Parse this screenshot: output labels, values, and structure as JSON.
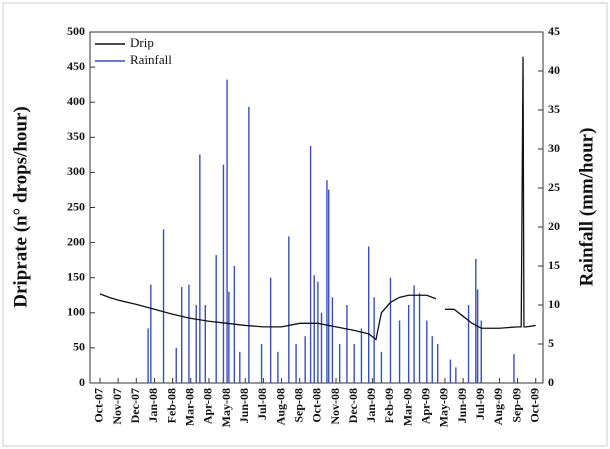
{
  "chart_data": {
    "type": "line",
    "y_label": "Driprate (n° drops/hour)",
    "y2_label": "Rainfall (mm/hour)",
    "xlim": [
      -0.55,
      24.4
    ],
    "xticks": [
      {
        "value": 0,
        "label": "Oct-07"
      },
      {
        "value": 1,
        "label": "Nov-07"
      },
      {
        "value": 2,
        "label": "Dec-07"
      },
      {
        "value": 3,
        "label": "Jan-08"
      },
      {
        "value": 4,
        "label": "Feb-08"
      },
      {
        "value": 5,
        "label": "Mar-08"
      },
      {
        "value": 6,
        "label": "Apr-08"
      },
      {
        "value": 7,
        "label": "May-08"
      },
      {
        "value": 8,
        "label": "Jun-08"
      },
      {
        "value": 9,
        "label": "Jul-08"
      },
      {
        "value": 10,
        "label": "Aug-08"
      },
      {
        "value": 11,
        "label": "Sep-08"
      },
      {
        "value": 12,
        "label": "Oct-08"
      },
      {
        "value": 13,
        "label": "Nov-08"
      },
      {
        "value": 14,
        "label": "Dec-08"
      },
      {
        "value": 15,
        "label": "Jan-09"
      },
      {
        "value": 16,
        "label": "Feb-09"
      },
      {
        "value": 17,
        "label": "Mar-09"
      },
      {
        "value": 18,
        "label": "Apr-09"
      },
      {
        "value": 19,
        "label": "May-09"
      },
      {
        "value": 20,
        "label": "Jun-09"
      },
      {
        "value": 21,
        "label": "Jul-09"
      },
      {
        "value": 22,
        "label": "Aug-09"
      },
      {
        "value": 23,
        "label": "Sep-09"
      },
      {
        "value": 24,
        "label": "Oct-09"
      }
    ],
    "ylim": [
      0,
      500
    ],
    "yticks": [
      0,
      50,
      100,
      150,
      200,
      250,
      300,
      350,
      400,
      450,
      500
    ],
    "y2lim": [
      0,
      45
    ],
    "y2ticks": [
      0,
      5,
      10,
      15,
      20,
      25,
      30,
      35,
      40,
      45
    ],
    "legend": "upper left",
    "series": [
      {
        "name": "Drip",
        "type": "line",
        "color": "#111111",
        "x": [
          0,
          0.5,
          1,
          2,
          3,
          4,
          5,
          6,
          7,
          8,
          9,
          10,
          11,
          12,
          13,
          14,
          14.8,
          15.2,
          15.5,
          16,
          16.5,
          17,
          17.5,
          18,
          18.5,
          18.8,
          19,
          19.5,
          20,
          20.5,
          21,
          22,
          23,
          23.2,
          23.3,
          23.35,
          23.5,
          24
        ],
        "values": [
          127,
          122,
          118,
          112,
          105,
          98,
          92,
          88,
          85,
          82,
          80,
          80,
          85,
          85,
          80,
          75,
          70,
          62,
          100,
          115,
          122,
          125,
          125,
          125,
          120,
          null,
          105,
          105,
          95,
          85,
          78,
          78,
          80,
          80,
          465,
          80,
          80,
          82
        ]
      },
      {
        "name": "Rainfall",
        "type": "bar",
        "axis": "y2",
        "color": "#3b4fb8",
        "x": [
          2.65,
          2.8,
          3.5,
          4.2,
          4.5,
          4.9,
          5.3,
          5.5,
          5.8,
          6.4,
          6.8,
          7.0,
          7.1,
          7.4,
          7.7,
          8.2,
          8.9,
          9.4,
          9.8,
          10.4,
          10.8,
          11.3,
          11.6,
          11.8,
          12.0,
          12.2,
          12.5,
          12.6,
          12.8,
          13.2,
          13.6,
          14.0,
          14.4,
          14.8,
          15.1,
          15.5,
          16.0,
          16.5,
          17.0,
          17.3,
          17.6,
          18.0,
          18.3,
          18.6,
          19.3,
          19.6,
          20.3,
          20.7,
          20.8,
          21.0,
          22.8
        ],
        "values": [
          7,
          12.6,
          19.7,
          4.5,
          12.3,
          12.6,
          10,
          29.3,
          10,
          16.4,
          28,
          38.9,
          11.7,
          15,
          4,
          35.4,
          5,
          13.5,
          4,
          18.8,
          5,
          6,
          30.4,
          13.8,
          13,
          9,
          26,
          24.8,
          11,
          5,
          10,
          5,
          7,
          17.5,
          11,
          4,
          13.5,
          8,
          10,
          12.5,
          11.5,
          8,
          6,
          5,
          3,
          2,
          10,
          15.9,
          12,
          8,
          3.7
        ]
      }
    ]
  }
}
